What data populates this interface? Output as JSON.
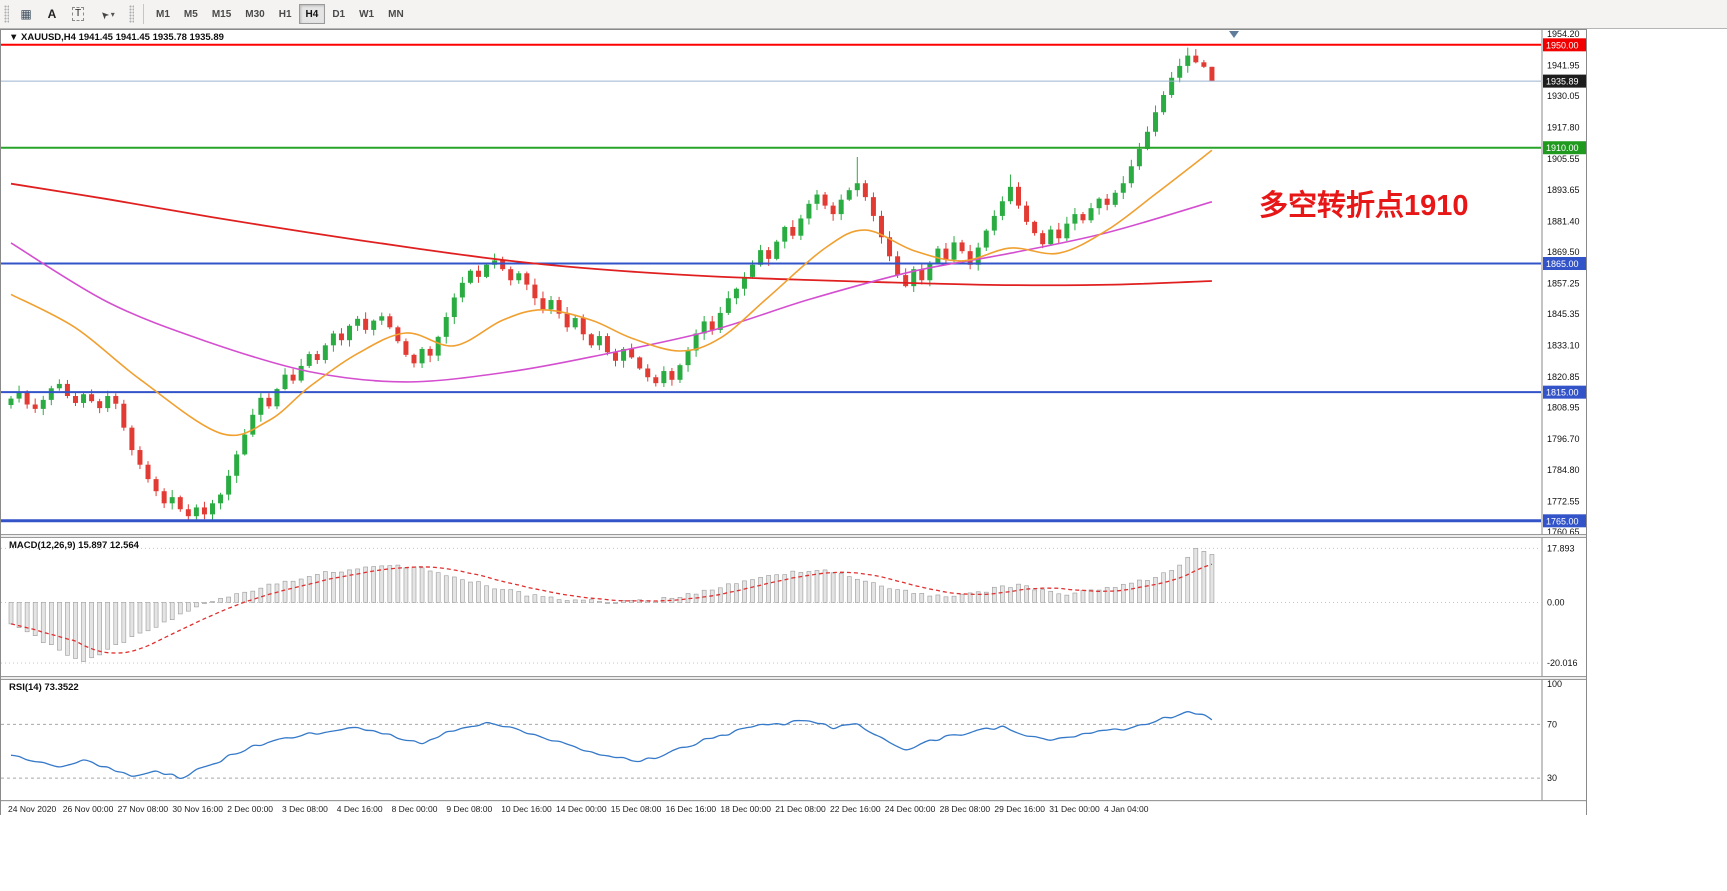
{
  "toolbar": {
    "tools": [
      {
        "name": "charts-grid",
        "glyph": "▦"
      },
      {
        "name": "label-a",
        "glyph": "A"
      },
      {
        "name": "text-box",
        "glyph": "T"
      },
      {
        "name": "pointer",
        "glyph": "➤",
        "caret": "▾"
      }
    ],
    "timeframes": [
      "M1",
      "M5",
      "M15",
      "M30",
      "H1",
      "H4",
      "D1",
      "W1",
      "MN"
    ],
    "active_timeframe": "H4"
  },
  "chart": {
    "header": {
      "collapse": "▼",
      "symbol": "XAUUSD,H4",
      "open": "1941.45",
      "high": "1941.45",
      "low": "1935.78",
      "close": "1935.89"
    },
    "annotation": {
      "text": "多空转折点1910",
      "color": "#e81717"
    }
  },
  "macd": {
    "label": "MACD(12,26,9)",
    "values": "15.897 12.564"
  },
  "rsi": {
    "label": "RSI(14)",
    "value": "73.3522"
  },
  "chart_data": {
    "type": "candlestick",
    "symbol": "XAUUSD",
    "timeframe": "H4",
    "price_range": {
      "max": 1954.2,
      "min": 1760.65
    },
    "price_axis_ticks": [
      1954.2,
      1941.95,
      1930.05,
      1917.8,
      1905.55,
      1893.65,
      1881.4,
      1869.5,
      1857.25,
      1845.35,
      1833.1,
      1820.85,
      1808.95,
      1796.7,
      1784.8,
      1772.55,
      1760.65
    ],
    "levels": [
      {
        "price": 1950.0,
        "color": "#ff0000",
        "width": 2,
        "badge": "#f20000"
      },
      {
        "price": 1935.89,
        "color": "#9ab2cf",
        "width": 1,
        "badge": "#1d1d1d"
      },
      {
        "price": 1910.0,
        "color": "#28a428",
        "width": 2,
        "badge": "#1f9a1f"
      },
      {
        "price": 1865.0,
        "color": "#3353c9",
        "width": 2,
        "badge": "#3353c9"
      },
      {
        "price": 1815.0,
        "color": "#3353c9",
        "width": 2,
        "badge": "#3353c9"
      },
      {
        "price": 1765.0,
        "color": "#3353c9",
        "width": 3,
        "badge": "#3353c9"
      }
    ],
    "candles": {
      "up_color": "#2bac43",
      "down_color": "#e23b34",
      "first_open": 1810.0,
      "closes": [
        1812.5,
        1814.8,
        1810.2,
        1808.5,
        1812.0,
        1816.5,
        1818.2,
        1813.5,
        1810.8,
        1814.2,
        1811.5,
        1808.8,
        1813.5,
        1810.5,
        1801.2,
        1792.5,
        1786.8,
        1781.2,
        1776.5,
        1771.8,
        1774.2,
        1769.5,
        1766.8,
        1770.2,
        1767.5,
        1771.8,
        1775.2,
        1782.5,
        1790.8,
        1798.5,
        1806.2,
        1812.8,
        1809.5,
        1816.2,
        1821.8,
        1819.5,
        1825.2,
        1829.8,
        1827.5,
        1833.2,
        1837.8,
        1835.2,
        1840.8,
        1843.5,
        1839.2,
        1842.8,
        1844.5,
        1840.2,
        1834.8,
        1829.5,
        1826.2,
        1831.8,
        1829.2,
        1836.5,
        1844.2,
        1851.8,
        1857.5,
        1862.2,
        1859.8,
        1864.5,
        1866.2,
        1862.8,
        1858.5,
        1861.2,
        1856.8,
        1851.5,
        1847.2,
        1850.8,
        1845.5,
        1840.2,
        1843.8,
        1837.5,
        1833.2,
        1836.8,
        1830.5,
        1827.2,
        1831.8,
        1828.5,
        1824.2,
        1820.8,
        1818.5,
        1823.2,
        1819.8,
        1825.5,
        1831.2,
        1837.8,
        1842.5,
        1839.2,
        1845.8,
        1851.5,
        1855.2,
        1859.8,
        1864.5,
        1870.2,
        1866.8,
        1873.5,
        1879.2,
        1875.8,
        1882.5,
        1888.2,
        1891.8,
        1887.5,
        1884.2,
        1889.8,
        1893.5,
        1896.2,
        1890.8,
        1883.5,
        1875.2,
        1867.8,
        1860.5,
        1856.2,
        1862.8,
        1858.5,
        1865.2,
        1870.8,
        1866.5,
        1873.2,
        1869.8,
        1864.5,
        1871.2,
        1877.8,
        1883.5,
        1889.2,
        1894.8,
        1887.5,
        1881.2,
        1876.8,
        1872.5,
        1878.2,
        1874.8,
        1880.5,
        1884.2,
        1881.8,
        1886.5,
        1890.2,
        1887.8,
        1892.5,
        1896.2,
        1902.8,
        1909.5,
        1916.2,
        1923.8,
        1930.5,
        1937.2,
        1941.8,
        1945.8,
        1943.2,
        1941.45,
        1935.89
      ],
      "wick_overrides": [
        {
          "i": 22,
          "low": 1765.2
        },
        {
          "i": 24,
          "low": 1765.6
        },
        {
          "i": 105,
          "high": 1906.4
        },
        {
          "i": 124,
          "high": 1899.6
        },
        {
          "i": 146,
          "high": 1948.9
        },
        {
          "i": 149,
          "high": 1941.45,
          "low": 1935.78
        }
      ]
    },
    "moving_averages": [
      {
        "name": "slow-ma",
        "color": "#e02020",
        "width": 1.8,
        "points": [
          [
            0,
            1896
          ],
          [
            12,
            1890
          ],
          [
            25,
            1883
          ],
          [
            37,
            1877
          ],
          [
            50,
            1871
          ],
          [
            62,
            1866
          ],
          [
            74,
            1862.5
          ],
          [
            87,
            1860
          ],
          [
            99,
            1858.6
          ],
          [
            112,
            1857.4
          ],
          [
            124,
            1856.6
          ],
          [
            137,
            1856.8
          ],
          [
            149,
            1858.2
          ]
        ]
      },
      {
        "name": "medium-ma",
        "color": "#d44fd0",
        "width": 1.6,
        "points": [
          [
            0,
            1873
          ],
          [
            12,
            1850
          ],
          [
            24,
            1835
          ],
          [
            37,
            1823
          ],
          [
            49,
            1819
          ],
          [
            62,
            1823
          ],
          [
            74,
            1830
          ],
          [
            87,
            1839
          ],
          [
            99,
            1851
          ],
          [
            112,
            1862
          ],
          [
            124,
            1869
          ],
          [
            136,
            1877
          ],
          [
            149,
            1889
          ]
        ]
      },
      {
        "name": "fast-ma",
        "color": "#f0a030",
        "width": 1.6,
        "points": [
          [
            0,
            1853
          ],
          [
            8,
            1840
          ],
          [
            16,
            1820
          ],
          [
            26,
            1799
          ],
          [
            32,
            1804
          ],
          [
            37,
            1817
          ],
          [
            43,
            1830
          ],
          [
            49,
            1838
          ],
          [
            55,
            1833
          ],
          [
            61,
            1843
          ],
          [
            66,
            1847
          ],
          [
            72,
            1843
          ],
          [
            77,
            1836
          ],
          [
            83,
            1831
          ],
          [
            88,
            1836
          ],
          [
            94,
            1852
          ],
          [
            101,
            1871
          ],
          [
            106,
            1878
          ],
          [
            112,
            1870
          ],
          [
            118,
            1866
          ],
          [
            124,
            1871
          ],
          [
            130,
            1869
          ],
          [
            136,
            1878
          ],
          [
            142,
            1892
          ],
          [
            149,
            1909
          ]
        ]
      }
    ],
    "macd": {
      "axis": [
        {
          "v": 17.893,
          "t": "17.893"
        },
        {
          "v": 0,
          "t": "0.00"
        },
        {
          "v": -20.016,
          "t": "-20.016"
        }
      ],
      "range": {
        "max": 20,
        "min": -23
      },
      "keypoints": [
        [
          0,
          -7
        ],
        [
          4,
          -13
        ],
        [
          9,
          -20.016
        ],
        [
          13,
          -14
        ],
        [
          18,
          -8
        ],
        [
          22,
          -3
        ],
        [
          25,
          0.5
        ],
        [
          29,
          3.5
        ],
        [
          34,
          7
        ],
        [
          39,
          10
        ],
        [
          44,
          11.5
        ],
        [
          47,
          12.3
        ],
        [
          52,
          10.5
        ],
        [
          56,
          8
        ],
        [
          60,
          5
        ],
        [
          64,
          2.5
        ],
        [
          68,
          1
        ],
        [
          72,
          0.4
        ],
        [
          76,
          0.3
        ],
        [
          80,
          0.8
        ],
        [
          84,
          2.5
        ],
        [
          88,
          5
        ],
        [
          92,
          7.5
        ],
        [
          96,
          9.5
        ],
        [
          100,
          10.8
        ],
        [
          103,
          9.5
        ],
        [
          107,
          6.5
        ],
        [
          110,
          4
        ],
        [
          113,
          2.8
        ],
        [
          116,
          2.2
        ],
        [
          119,
          3
        ],
        [
          122,
          4.5
        ],
        [
          125,
          5.8
        ],
        [
          128,
          4.2
        ],
        [
          131,
          3
        ],
        [
          134,
          3.8
        ],
        [
          137,
          5
        ],
        [
          140,
          7
        ],
        [
          143,
          9.5
        ],
        [
          145,
          12
        ],
        [
          147,
          17.893
        ],
        [
          148,
          16.9
        ],
        [
          149,
          15.897
        ]
      ],
      "bar_color": "#e4e4e4",
      "bar_stroke": "#9a9a9a",
      "signal_color": "#e03030"
    },
    "rsi": {
      "axis": [
        {
          "v": 100,
          "t": "100"
        },
        {
          "v": 70,
          "t": "70"
        },
        {
          "v": 30,
          "t": "30"
        }
      ],
      "levels": [
        70,
        30
      ],
      "line_color": "#3579c8",
      "keypoints": [
        [
          0,
          47
        ],
        [
          3,
          42
        ],
        [
          6,
          38
        ],
        [
          9,
          43
        ],
        [
          12,
          37
        ],
        [
          15,
          32
        ],
        [
          18,
          35
        ],
        [
          21,
          31
        ],
        [
          24,
          38
        ],
        [
          27,
          46
        ],
        [
          30,
          53
        ],
        [
          33,
          58
        ],
        [
          36,
          62
        ],
        [
          39,
          65
        ],
        [
          42,
          68
        ],
        [
          45,
          64
        ],
        [
          48,
          60
        ],
        [
          51,
          56
        ],
        [
          54,
          64
        ],
        [
          57,
          69
        ],
        [
          60,
          71
        ],
        [
          63,
          66
        ],
        [
          66,
          60
        ],
        [
          69,
          55
        ],
        [
          72,
          50
        ],
        [
          75,
          46
        ],
        [
          78,
          43
        ],
        [
          81,
          47
        ],
        [
          84,
          54
        ],
        [
          87,
          60
        ],
        [
          90,
          65
        ],
        [
          93,
          69
        ],
        [
          96,
          71
        ],
        [
          99,
          73
        ],
        [
          102,
          68
        ],
        [
          105,
          71
        ],
        [
          108,
          60
        ],
        [
          111,
          52
        ],
        [
          114,
          57
        ],
        [
          117,
          62
        ],
        [
          120,
          65
        ],
        [
          123,
          68
        ],
        [
          126,
          62
        ],
        [
          129,
          58
        ],
        [
          132,
          61
        ],
        [
          135,
          64
        ],
        [
          138,
          67
        ],
        [
          141,
          71
        ],
        [
          144,
          76
        ],
        [
          146,
          79
        ],
        [
          148,
          78
        ],
        [
          149,
          73.3522
        ]
      ]
    },
    "time_labels": [
      "24 Nov 2020",
      "26 Nov 00:00",
      "27 Nov 08:00",
      "30 Nov 16:00",
      "2 Dec 00:00",
      "3 Dec 08:00",
      "4 Dec 16:00",
      "8 Dec 00:00",
      "9 Dec 08:00",
      "10 Dec 16:00",
      "14 Dec 00:00",
      "15 Dec 08:00",
      "16 Dec 16:00",
      "18 Dec 00:00",
      "21 Dec 08:00",
      "22 Dec 16:00",
      "24 Dec 00:00",
      "28 Dec 08:00",
      "29 Dec 16:00",
      "31 Dec 00:00",
      "4 Jan 04:00"
    ]
  }
}
